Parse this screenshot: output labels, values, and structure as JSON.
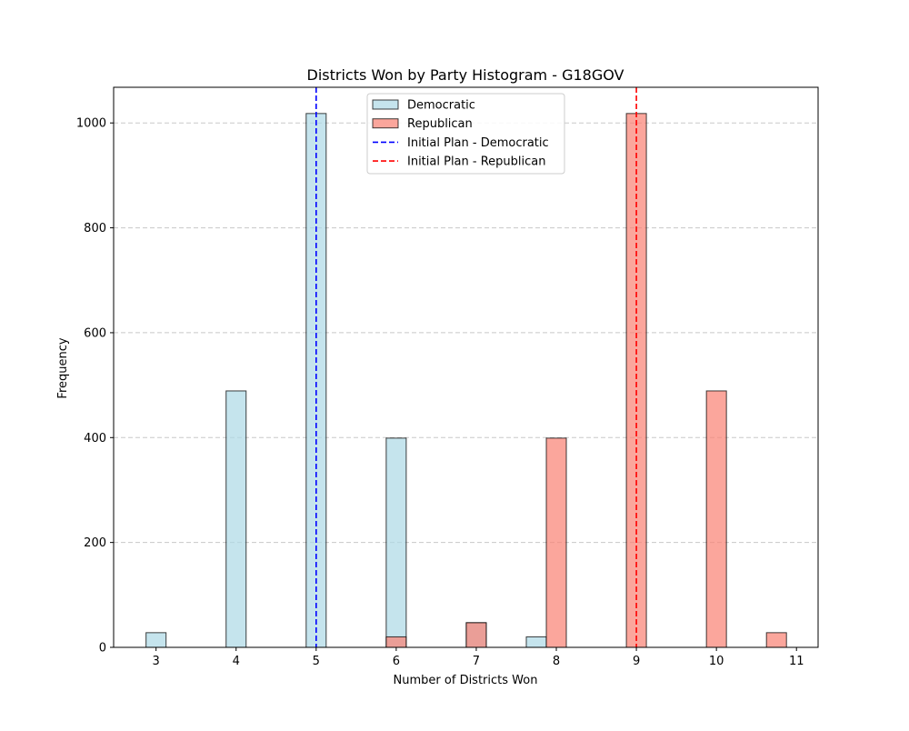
{
  "chart_data": {
    "type": "bar",
    "title": "Districts Won by Party Histogram - G18GOV",
    "xlabel": "Number of Districts Won",
    "ylabel": "Frequency",
    "xlim": [
      2.47,
      11.27
    ],
    "ylim": [
      0,
      1068
    ],
    "x_ticks": [
      3,
      4,
      5,
      6,
      7,
      8,
      9,
      10,
      11
    ],
    "y_ticks": [
      0,
      200,
      400,
      600,
      800,
      1000
    ],
    "grid": "y-dashed",
    "legend_position": "upper center",
    "series": [
      {
        "name": "Democratic",
        "color": "#add8e6",
        "bins": [
          {
            "x0": 2.875,
            "x1": 3.125,
            "value": 28
          },
          {
            "x0": 3.875,
            "x1": 4.125,
            "value": 489
          },
          {
            "x0": 4.875,
            "x1": 5.125,
            "value": 1018
          },
          {
            "x0": 5.875,
            "x1": 6.125,
            "value": 399
          },
          {
            "x0": 6.875,
            "x1": 7.125,
            "value": 47
          },
          {
            "x0": 7.625,
            "x1": 7.875,
            "value": 20
          }
        ]
      },
      {
        "name": "Republican",
        "color": "#fa8072",
        "bins": [
          {
            "x0": 5.875,
            "x1": 6.125,
            "value": 20
          },
          {
            "x0": 6.875,
            "x1": 7.125,
            "value": 47
          },
          {
            "x0": 7.875,
            "x1": 8.125,
            "value": 399
          },
          {
            "x0": 8.875,
            "x1": 9.125,
            "value": 1018
          },
          {
            "x0": 9.875,
            "x1": 10.125,
            "value": 489
          },
          {
            "x0": 10.625,
            "x1": 10.875,
            "value": 28
          }
        ]
      }
    ],
    "reference_lines": [
      {
        "name": "Initial Plan - Democratic",
        "x": 5,
        "color": "#0000ff"
      },
      {
        "name": "Initial Plan - Republican",
        "x": 9,
        "color": "#ff0000"
      }
    ]
  }
}
